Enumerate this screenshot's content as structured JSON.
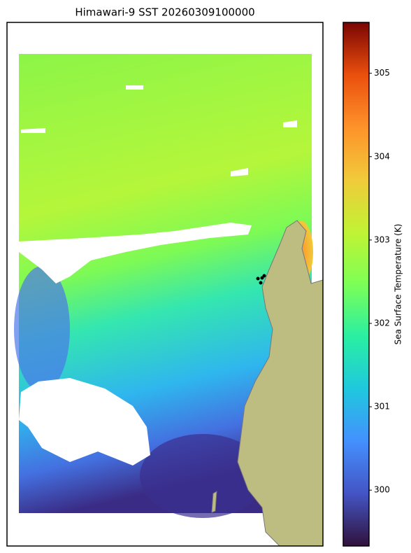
{
  "chart_data": {
    "type": "map",
    "title": "Himawari-9 SST 20260309100000",
    "colormap": "turbo",
    "colorbar": {
      "label": "Sea Surface Temperature (K)",
      "lim": [
        299.33,
        305.61
      ],
      "ticks": [
        300,
        301,
        302,
        303,
        304,
        305
      ]
    }
  }
}
